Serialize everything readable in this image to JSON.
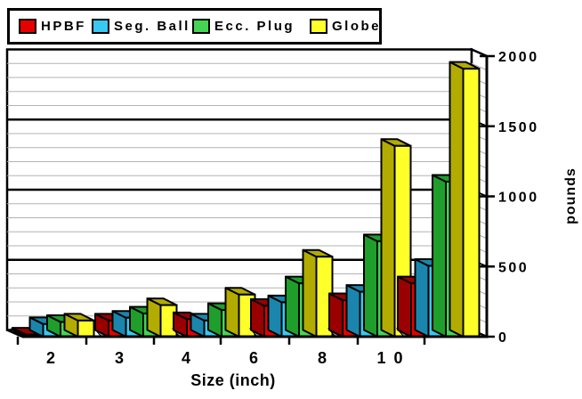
{
  "chart_data": {
    "type": "bar",
    "style": "3d-grouped",
    "title": "",
    "xlabel": "Size (inch)",
    "ylabel": "pounds",
    "categories": [
      "2",
      "3",
      "4",
      "6",
      "8",
      "1 0"
    ],
    "series": [
      {
        "name": "HPBF",
        "color": "#e60000",
        "dark": "#9a0000",
        "values": [
          15,
          115,
          125,
          220,
          260,
          380
        ]
      },
      {
        "name": "Seg. Ball",
        "color": "#38c8f0",
        "dark": "#1b86ad",
        "values": [
          90,
          135,
          115,
          245,
          320,
          505
        ]
      },
      {
        "name": "Ecc. Plug",
        "color": "#46d455",
        "dark": "#1f9e2c",
        "values": [
          105,
          165,
          190,
          380,
          680,
          1105
        ]
      },
      {
        "name": "Globe",
        "color": "#ffff2a",
        "dark": "#b3ac00",
        "values": [
          115,
          225,
          300,
          570,
          1360,
          1910
        ]
      }
    ],
    "ylim": [
      0,
      2000
    ],
    "yticks": [
      0,
      500,
      1000,
      1500,
      2000
    ],
    "ytick_labels": [
      "0",
      "500",
      "1000",
      "1500",
      "2000"
    ],
    "minor_grid_step": 100,
    "major_grid_step": 500,
    "grid": true,
    "legend_position": "top-left"
  },
  "colors": {
    "background": "#ffffff",
    "axis": "#000000",
    "minor_gridline": "#b3b3b3",
    "major_gridline": "#000000",
    "floor_shadow": "#8f8f8f",
    "text": "#000000"
  }
}
